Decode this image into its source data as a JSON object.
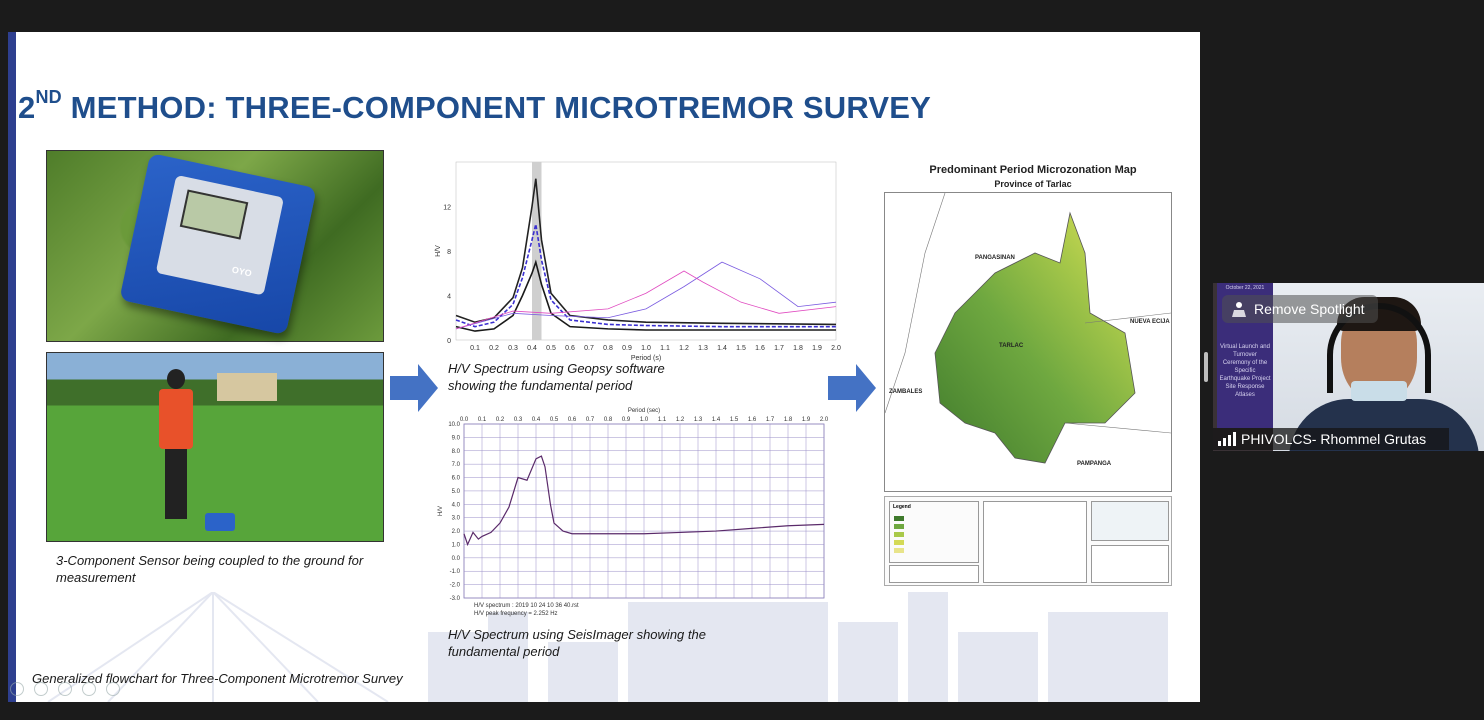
{
  "slide": {
    "title_prefix": "2",
    "title_sup": "ND",
    "title_rest": " METHOD: THREE-COMPONENT MICROTREMOR SURVEY",
    "caption_sensor": "3-Component Sensor being coupled to the ground for measurement",
    "caption_geopsy": "H/V Spectrum using Geopsy software showing the fundamental period",
    "caption_seis": "H/V Spectrum using SeisImager showing the fundamental period",
    "caption_flow": "Generalized flowchart for Three-Component Microtremor Survey",
    "device_brand": "OYO",
    "map": {
      "title": "Predominant Period Microzonation Map",
      "subtitle": "Province of Tarlac",
      "labels": {
        "pangasinan": "PANGASINAN",
        "nueva_ecija": "NUEVA ECIJA",
        "zambales": "ZAMBALES",
        "tarlac": "TARLAC",
        "pampanga": "PAMPANGA"
      },
      "legend_title": "Legend"
    }
  },
  "chart_data": [
    {
      "type": "line",
      "xlabel": "Period (s)",
      "ylabel": "H/V",
      "x_ticks": [
        "0.1",
        "0.2",
        "0.3",
        "0.4",
        "0.5",
        "0.6",
        "0.7",
        "0.8",
        "0.9",
        "1.0",
        "1.1",
        "1.2",
        "1.3",
        "1.4",
        "1.5",
        "1.6",
        "1.7",
        "1.8",
        "1.9",
        "2.0"
      ],
      "y_ticks": [
        "0",
        "4",
        "8",
        "12"
      ],
      "xlim": [
        0,
        2.0
      ],
      "ylim": [
        0,
        16
      ],
      "series": [
        {
          "values_x": [
            0.0,
            0.1,
            0.2,
            0.3,
            0.35,
            0.4,
            0.42,
            0.45,
            0.5,
            0.6,
            0.8,
            1.0,
            1.4,
            2.0
          ],
          "values_y": [
            2.2,
            1.6,
            2.0,
            3.8,
            6.5,
            12.0,
            14.5,
            9.0,
            4.2,
            2.2,
            1.8,
            1.6,
            1.5,
            1.4
          ]
        },
        {
          "values_x": [
            0.0,
            0.1,
            0.2,
            0.3,
            0.35,
            0.4,
            0.42,
            0.45,
            0.5,
            0.6,
            0.8,
            1.0,
            1.4,
            2.0
          ],
          "values_y": [
            1.8,
            1.2,
            1.6,
            3.2,
            5.6,
            9.0,
            10.4,
            7.2,
            3.6,
            1.8,
            1.4,
            1.3,
            1.2,
            1.2
          ]
        },
        {
          "values_x": [
            0.0,
            0.1,
            0.2,
            0.3,
            0.35,
            0.4,
            0.42,
            0.45,
            0.5,
            0.6,
            0.8,
            1.0,
            1.4,
            2.0
          ],
          "values_y": [
            1.2,
            0.8,
            1.0,
            2.2,
            4.0,
            6.0,
            7.0,
            5.0,
            2.4,
            1.2,
            1.0,
            0.9,
            0.9,
            0.9
          ]
        },
        {
          "values_x": [
            0.0,
            0.3,
            0.5,
            0.8,
            1.0,
            1.2,
            1.4,
            1.6,
            1.8,
            2.0
          ],
          "values_y": [
            1.0,
            2.4,
            2.2,
            2.0,
            2.8,
            4.8,
            7.0,
            5.5,
            3.0,
            3.4
          ]
        },
        {
          "values_x": [
            0.0,
            0.3,
            0.5,
            0.8,
            1.0,
            1.2,
            1.3,
            1.5,
            1.7,
            2.0
          ],
          "values_y": [
            1.0,
            2.6,
            2.4,
            2.8,
            4.2,
            6.2,
            5.2,
            3.4,
            2.4,
            3.0
          ]
        }
      ]
    },
    {
      "type": "line",
      "title": "Period (sec)",
      "ylabel": "H/V",
      "x_ticks": [
        "0.0",
        "0.1",
        "0.2",
        "0.3",
        "0.4",
        "0.5",
        "0.6",
        "0.7",
        "0.8",
        "0.9",
        "1.0",
        "1.1",
        "1.2",
        "1.3",
        "1.4",
        "1.5",
        "1.6",
        "1.7",
        "1.8",
        "1.9",
        "2.0"
      ],
      "y_ticks": [
        "10.0",
        "9.0",
        "8.0",
        "7.0",
        "6.0",
        "5.0",
        "4.0",
        "3.0",
        "2.0",
        "1.0",
        "0.0",
        "-1.0",
        "-2.0",
        "-3.0"
      ],
      "xlim": [
        0.0,
        2.0
      ],
      "ylim": [
        -3.0,
        10.0
      ],
      "annotation_1": "H/V spectrum : 2019 10 24 10 36 40.rst",
      "annotation_2": "H/V peak frequency = 2.252 Hz",
      "series": [
        {
          "values_x": [
            0.0,
            0.02,
            0.05,
            0.08,
            0.1,
            0.15,
            0.2,
            0.25,
            0.3,
            0.35,
            0.4,
            0.43,
            0.45,
            0.48,
            0.5,
            0.55,
            0.6,
            0.7,
            0.8,
            1.0,
            1.2,
            1.4,
            1.6,
            1.8,
            2.0
          ],
          "values_y": [
            1.8,
            1.0,
            1.9,
            1.4,
            1.6,
            1.9,
            2.6,
            3.8,
            6.0,
            5.8,
            7.4,
            7.6,
            6.8,
            4.0,
            2.6,
            2.0,
            1.8,
            1.8,
            1.8,
            1.8,
            1.9,
            2.0,
            2.2,
            2.4,
            2.5
          ]
        }
      ]
    }
  ],
  "participant": {
    "name": "PHIVOLCS- Rhommel Grutas",
    "spotlight_label": "Remove Spotlight",
    "tile_date": "October 22, 2021",
    "tile_text": "Virtual Launch and Turnover Ceremony of the Specific Earthquake Project Site Response Atlases"
  },
  "colors": {
    "title": "#1f4e8c",
    "arrow": "#4472c4",
    "accent": "#2e3f8f"
  }
}
